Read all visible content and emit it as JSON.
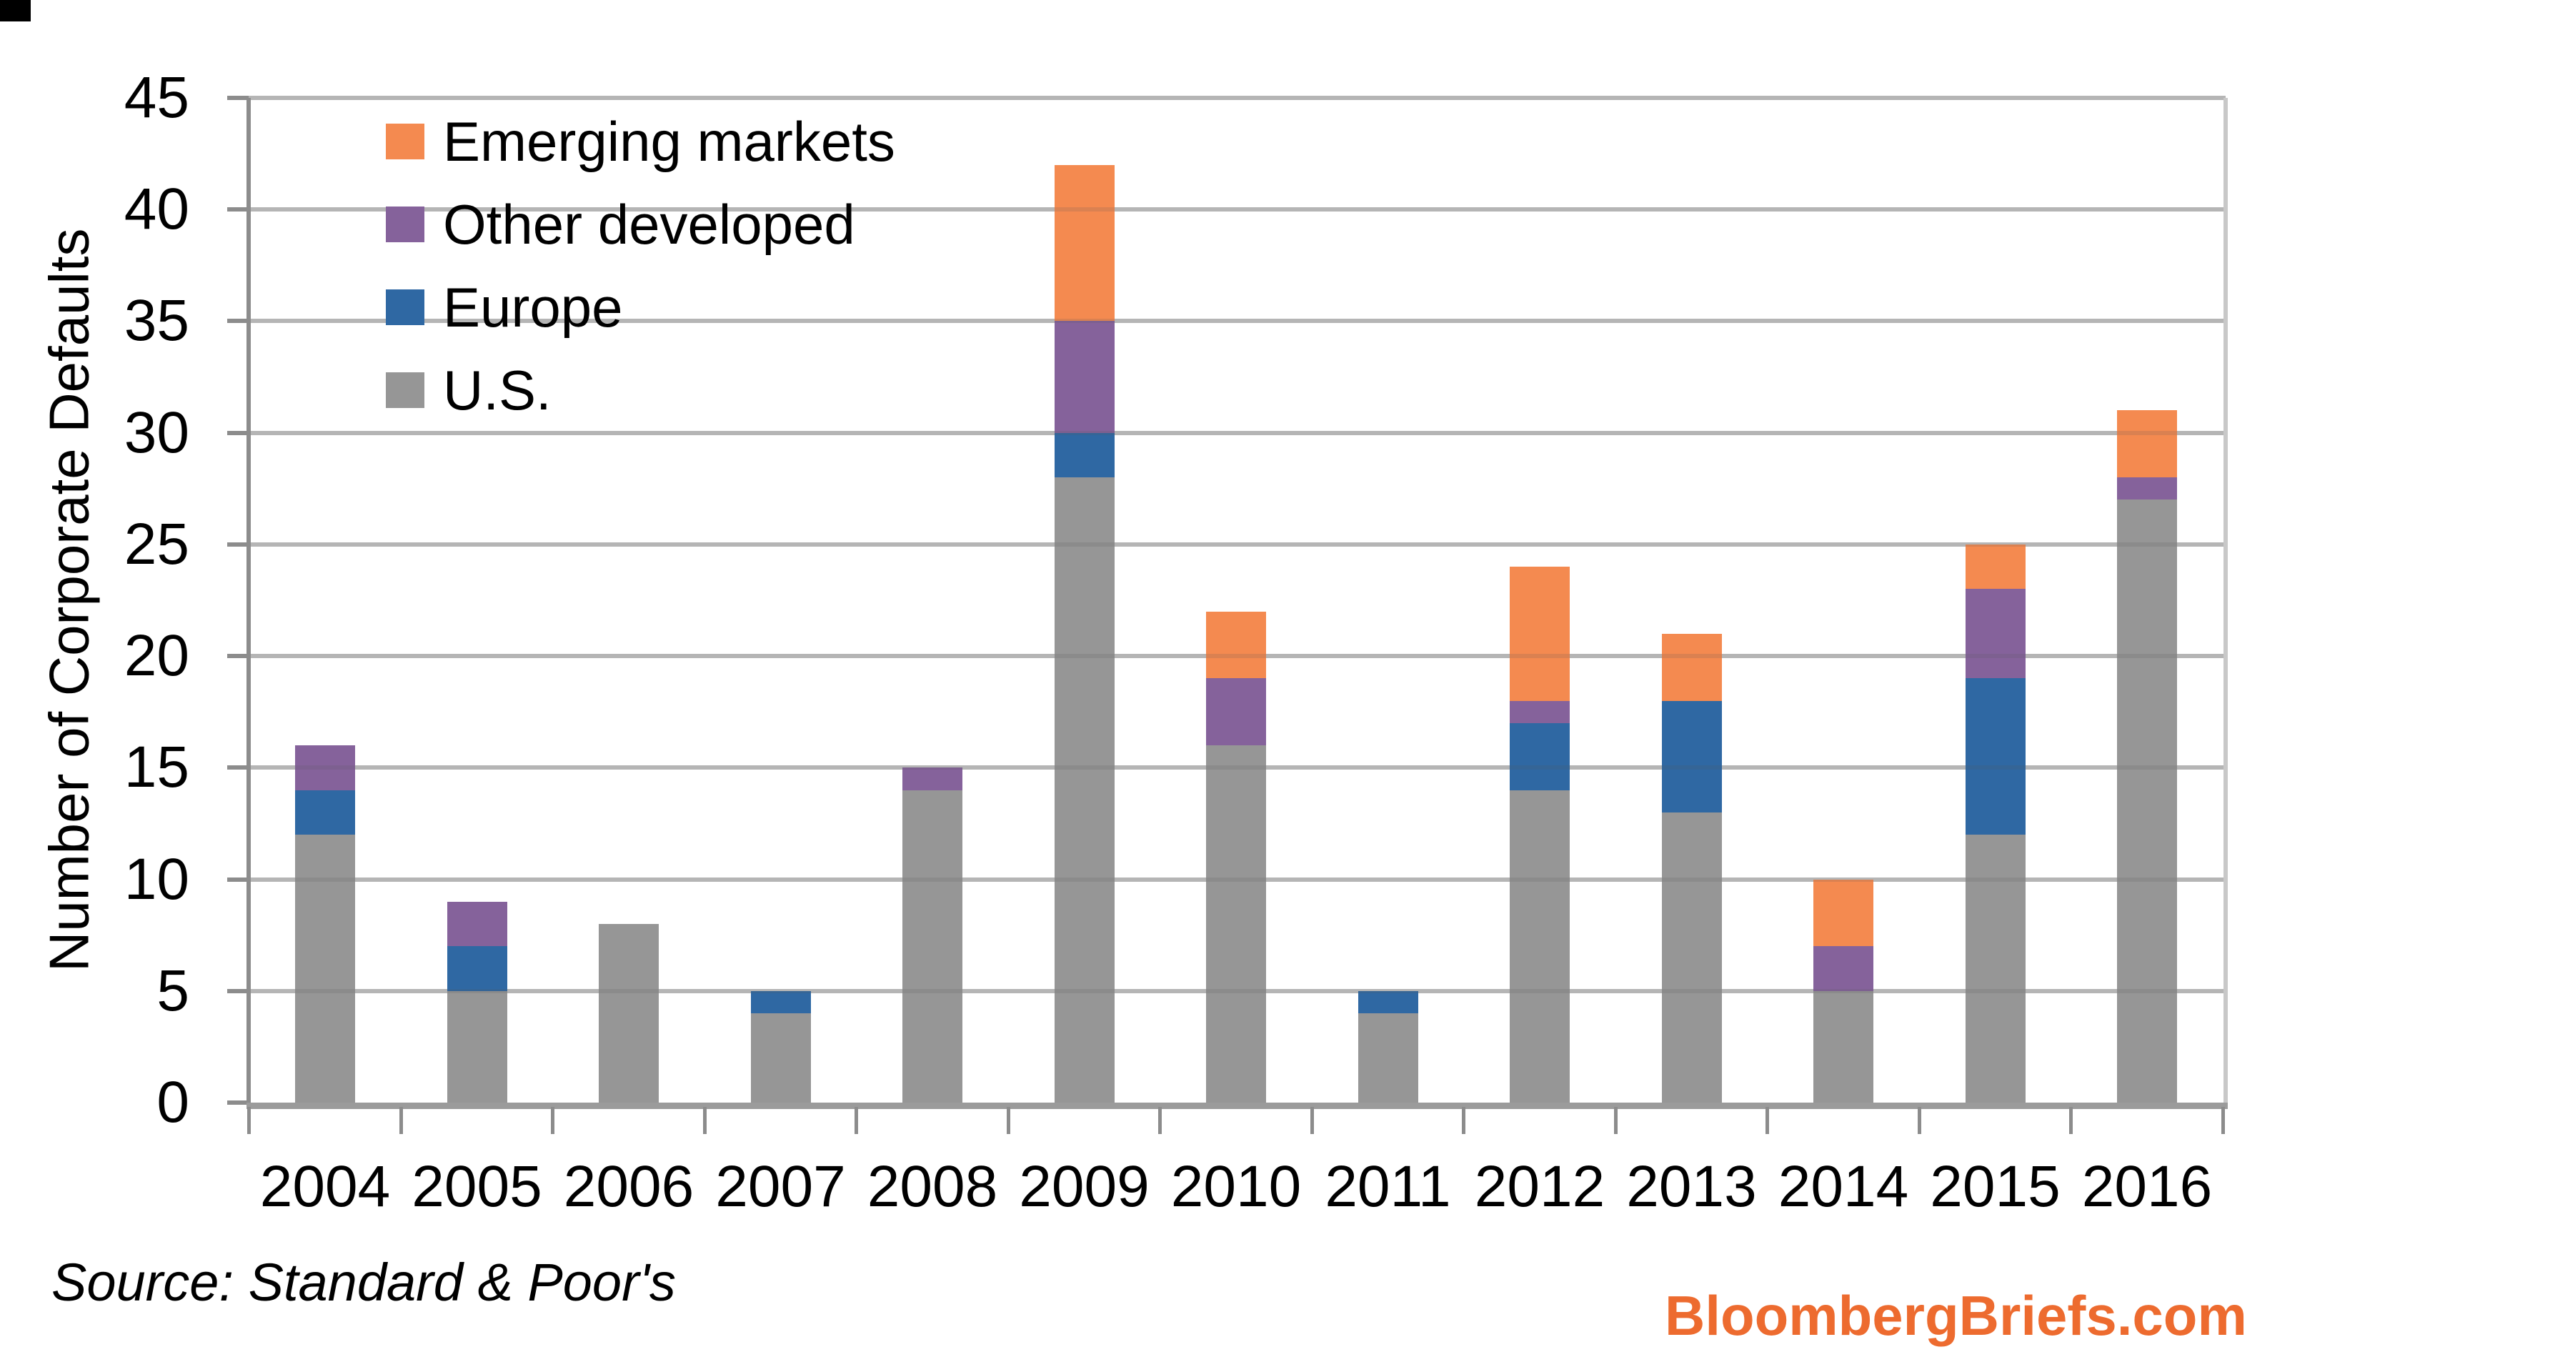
{
  "chart_data": {
    "type": "bar",
    "stacked": true,
    "categories": [
      "2004",
      "2005",
      "2006",
      "2007",
      "2008",
      "2009",
      "2010",
      "2011",
      "2012",
      "2013",
      "2014",
      "2015",
      "2016"
    ],
    "series": [
      {
        "name": "U.S.",
        "color": "#969696",
        "values": [
          12,
          5,
          8,
          4,
          14,
          28,
          16,
          4,
          14,
          13,
          5,
          12,
          27
        ]
      },
      {
        "name": "Europe",
        "color": "#2F68A3",
        "values": [
          2,
          2,
          0,
          1,
          0,
          2,
          0,
          1,
          3,
          5,
          0,
          7,
          0
        ]
      },
      {
        "name": "Other developed",
        "color": "#85629B",
        "values": [
          2,
          2,
          0,
          0,
          1,
          5,
          3,
          0,
          1,
          0,
          2,
          4,
          1
        ]
      },
      {
        "name": "Emerging markets",
        "color": "#F48A50",
        "values": [
          0,
          0,
          0,
          0,
          0,
          7,
          3,
          0,
          6,
          3,
          3,
          2,
          3
        ]
      }
    ],
    "totals": [
      16,
      9,
      8,
      5,
      15,
      42,
      22,
      5,
      24,
      21,
      10,
      25,
      31
    ],
    "legend_order": [
      "Emerging markets",
      "Other developed",
      "Europe",
      "U.S."
    ],
    "legend_position": "top-left",
    "title": "",
    "xlabel": "",
    "ylabel": "Number of Corporate Defaults",
    "ylim": [
      0,
      45
    ],
    "ytick_step": 5,
    "yticks": [
      "0",
      "5",
      "10",
      "15",
      "20",
      "25",
      "30",
      "35",
      "40",
      "45"
    ],
    "grid": "horizontal"
  },
  "footer": {
    "source": "Source: Standard & Poor's",
    "brand": "BloombergBriefs.com",
    "brand_color": "#ED6B2F"
  }
}
